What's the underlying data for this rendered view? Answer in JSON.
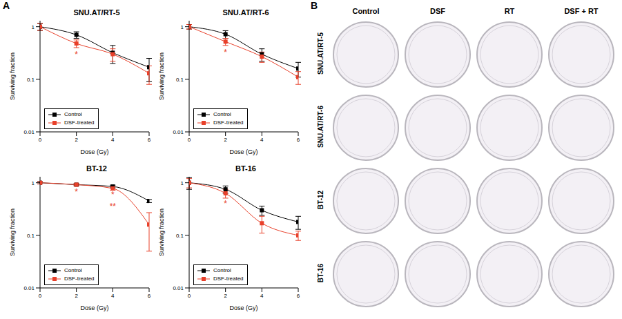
{
  "chart_data": [
    {
      "type": "line",
      "title": "SNU.AT/RT-5",
      "x_label": "Dose (Gy)",
      "y_label": "Surviving fraction",
      "log": "y",
      "grid": false,
      "legend": "lower left",
      "marker": "square",
      "xlim": [
        0,
        6
      ],
      "xticks": [
        0,
        2,
        4,
        6
      ],
      "ylim": [
        0.01,
        1.3
      ],
      "yticks": [
        0.01,
        0.1,
        1
      ],
      "x": [
        0,
        2,
        4,
        6
      ],
      "series": [
        {
          "name": "Control",
          "color": "#000000",
          "values": [
            1,
            0.7,
            0.32,
            0.17
          ],
          "errors": [
            0.15,
            0.1,
            0.12,
            0.08
          ]
        },
        {
          "name": "DSF-treated",
          "color": "#e8402a",
          "values": [
            1,
            0.48,
            0.3,
            0.13
          ],
          "errors": [
            0.15,
            0.08,
            0.08,
            0.05
          ]
        }
      ],
      "annotations": [
        {
          "x": 2,
          "y": 0.3,
          "text": "*",
          "color": "#e8402a"
        }
      ]
    },
    {
      "type": "line",
      "title": "SNU.AT/RT-6",
      "x_label": "Dose (Gy)",
      "y_label": "Surviving fraction",
      "log": "y",
      "grid": false,
      "legend": "lower left",
      "marker": "square",
      "xlim": [
        0,
        6
      ],
      "xticks": [
        0,
        2,
        4,
        6
      ],
      "ylim": [
        0.01,
        1.3
      ],
      "yticks": [
        0.01,
        0.1,
        1
      ],
      "x": [
        0,
        2,
        4,
        6
      ],
      "series": [
        {
          "name": "Control",
          "color": "#000000",
          "values": [
            1,
            0.72,
            0.3,
            0.16
          ],
          "errors": [
            0.1,
            0.12,
            0.08,
            0.05
          ]
        },
        {
          "name": "DSF-treated",
          "color": "#e8402a",
          "values": [
            1,
            0.52,
            0.27,
            0.11
          ],
          "errors": [
            0.1,
            0.08,
            0.06,
            0.03
          ]
        }
      ],
      "annotations": [
        {
          "x": 2,
          "y": 0.33,
          "text": "*",
          "color": "#e8402a"
        }
      ]
    },
    {
      "type": "line",
      "title": "BT-12",
      "x_label": "Dose (Gy)",
      "y_label": "Surviving fraction",
      "log": "y",
      "grid": false,
      "legend": "lower left",
      "marker": "square",
      "xlim": [
        0,
        6
      ],
      "xticks": [
        0,
        2,
        4,
        6
      ],
      "ylim": [
        0.01,
        1.3
      ],
      "yticks": [
        0.01,
        0.1,
        1
      ],
      "x": [
        0,
        2,
        4,
        6
      ],
      "series": [
        {
          "name": "Control",
          "color": "#000000",
          "values": [
            1,
            0.92,
            0.85,
            0.45
          ],
          "errors": [
            0.05,
            0.04,
            0.05,
            0.03
          ]
        },
        {
          "name": "DSF-treated",
          "color": "#e8402a",
          "values": [
            1,
            0.92,
            0.78,
            0.16
          ],
          "errors": [
            0.05,
            0.04,
            0.06,
            0.11
          ]
        }
      ],
      "annotations": [
        {
          "x": 2,
          "y": 0.68,
          "text": "*",
          "color": "#e8402a"
        },
        {
          "x": 4,
          "y": 0.6,
          "text": "*",
          "color": "#e8402a"
        },
        {
          "x": 4,
          "y": 0.36,
          "text": "**",
          "color": "#e8402a"
        }
      ]
    },
    {
      "type": "line",
      "title": "BT-16",
      "x_label": "Dose (Gy)",
      "y_label": "Surviving fraction",
      "log": "y",
      "grid": false,
      "legend": "lower left",
      "marker": "square",
      "xlim": [
        0,
        6
      ],
      "xticks": [
        0,
        2,
        4,
        6
      ],
      "ylim": [
        0.01,
        1.3
      ],
      "yticks": [
        0.01,
        0.1,
        1
      ],
      "x": [
        0,
        2,
        4,
        6
      ],
      "series": [
        {
          "name": "Control",
          "color": "#000000",
          "values": [
            1,
            0.75,
            0.3,
            0.18
          ],
          "errors": [
            0.25,
            0.12,
            0.06,
            0.05
          ]
        },
        {
          "name": "DSF-treated",
          "color": "#e8402a",
          "values": [
            1,
            0.63,
            0.17,
            0.1
          ],
          "errors": [
            0.2,
            0.12,
            0.06,
            0.02
          ]
        }
      ],
      "annotations": [
        {
          "x": 2,
          "y": 0.4,
          "text": "*",
          "color": "#e8402a"
        }
      ]
    }
  ],
  "panel_labels": [
    "A",
    "B"
  ],
  "plates": {
    "columns": [
      "Control",
      "DSF",
      "RT",
      "DSF + RT"
    ],
    "rows": [
      "SNU.AT/RT-5",
      "SNU.AT/RT-6",
      "BT-12",
      "BT-16"
    ]
  }
}
